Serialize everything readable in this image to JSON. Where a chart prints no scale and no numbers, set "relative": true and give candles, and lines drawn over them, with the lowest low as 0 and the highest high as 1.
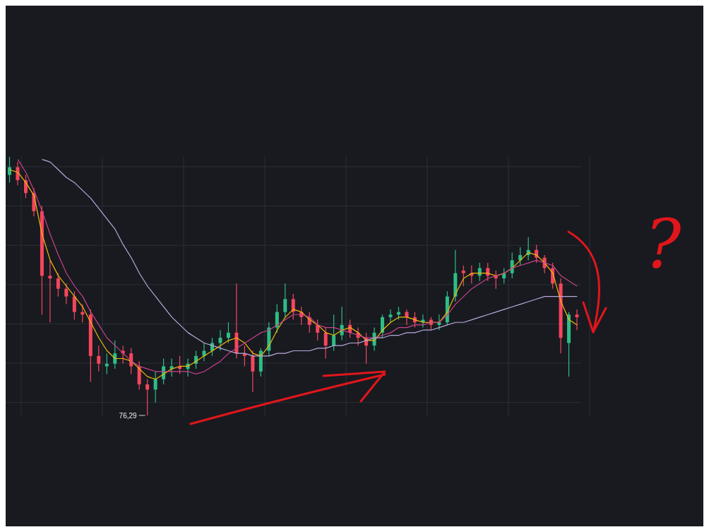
{
  "chart_data": {
    "type": "candlestick",
    "relative": true,
    "grid": true,
    "categories": [
      null,
      null,
      null,
      null,
      null,
      null,
      null,
      null,
      null,
      null,
      null,
      null,
      null,
      null,
      null,
      null,
      null,
      null,
      null,
      null,
      null,
      null,
      null,
      null,
      null,
      null,
      null,
      null,
      null,
      null,
      null,
      null,
      null,
      null,
      null,
      null,
      null,
      null,
      null,
      null,
      null,
      null,
      null,
      null,
      null,
      null,
      null,
      null,
      null,
      null,
      null,
      null,
      null,
      null,
      null,
      null,
      null,
      null,
      null,
      null,
      null,
      null,
      null,
      null,
      null,
      null,
      null,
      null,
      null,
      null,
      null
    ],
    "series": [
      {
        "ohlc": [
          [
            0.93,
            1.0,
            0.9,
            0.96
          ],
          [
            0.96,
            0.98,
            0.89,
            0.91
          ],
          [
            0.91,
            0.93,
            0.84,
            0.86
          ],
          [
            0.86,
            0.88,
            0.77,
            0.79
          ],
          [
            0.79,
            0.81,
            0.39,
            0.54
          ],
          [
            0.54,
            0.6,
            0.36,
            0.53
          ],
          [
            0.53,
            0.55,
            0.46,
            0.49
          ],
          [
            0.49,
            0.51,
            0.43,
            0.46
          ],
          [
            0.46,
            0.48,
            0.37,
            0.4
          ],
          [
            0.4,
            0.43,
            0.36,
            0.39
          ],
          [
            0.39,
            0.41,
            0.13,
            0.23
          ],
          [
            0.23,
            0.27,
            0.17,
            0.2
          ],
          [
            0.19,
            0.24,
            0.16,
            0.2
          ],
          [
            0.2,
            0.29,
            0.18,
            0.24
          ],
          [
            0.25,
            0.27,
            0.2,
            0.24
          ],
          [
            0.24,
            0.26,
            0.16,
            0.19
          ],
          [
            0.19,
            0.21,
            0.1,
            0.12
          ],
          [
            0.12,
            0.14,
            0.0,
            0.1
          ],
          [
            0.1,
            0.17,
            0.05,
            0.14
          ],
          [
            0.14,
            0.22,
            0.12,
            0.19
          ],
          [
            0.18,
            0.22,
            0.15,
            0.19
          ],
          [
            0.19,
            0.23,
            0.16,
            0.18
          ],
          [
            0.18,
            0.22,
            0.15,
            0.2
          ],
          [
            0.2,
            0.25,
            0.18,
            0.23
          ],
          [
            0.23,
            0.28,
            0.21,
            0.25
          ],
          [
            0.25,
            0.3,
            0.23,
            0.28
          ],
          [
            0.28,
            0.33,
            0.25,
            0.3
          ],
          [
            0.3,
            0.36,
            0.28,
            0.32
          ],
          [
            0.32,
            0.51,
            0.22,
            0.24
          ],
          [
            0.24,
            0.27,
            0.19,
            0.23
          ],
          [
            0.23,
            0.25,
            0.09,
            0.17
          ],
          [
            0.17,
            0.26,
            0.15,
            0.25
          ],
          [
            0.25,
            0.36,
            0.23,
            0.34
          ],
          [
            0.34,
            0.43,
            0.32,
            0.4
          ],
          [
            0.4,
            0.51,
            0.38,
            0.45
          ],
          [
            0.45,
            0.47,
            0.37,
            0.4
          ],
          [
            0.4,
            0.42,
            0.35,
            0.38
          ],
          [
            0.38,
            0.4,
            0.32,
            0.35
          ],
          [
            0.35,
            0.37,
            0.29,
            0.32
          ],
          [
            0.32,
            0.34,
            0.22,
            0.27
          ],
          [
            0.27,
            0.39,
            0.25,
            0.31
          ],
          [
            0.31,
            0.42,
            0.29,
            0.35
          ],
          [
            0.35,
            0.37,
            0.3,
            0.32
          ],
          [
            0.32,
            0.34,
            0.27,
            0.3
          ],
          [
            0.3,
            0.32,
            0.2,
            0.27
          ],
          [
            0.27,
            0.34,
            0.25,
            0.32
          ],
          [
            0.32,
            0.39,
            0.3,
            0.38
          ],
          [
            0.38,
            0.41,
            0.36,
            0.39
          ],
          [
            0.39,
            0.42,
            0.37,
            0.4
          ],
          [
            0.4,
            0.41,
            0.35,
            0.38
          ],
          [
            0.38,
            0.4,
            0.34,
            0.36
          ],
          [
            0.36,
            0.39,
            0.34,
            0.37
          ],
          [
            0.37,
            0.38,
            0.33,
            0.35
          ],
          [
            0.35,
            0.39,
            0.33,
            0.36
          ],
          [
            0.36,
            0.48,
            0.35,
            0.46
          ],
          [
            0.46,
            0.64,
            0.44,
            0.55
          ],
          [
            0.56,
            0.58,
            0.5,
            0.55
          ],
          [
            0.55,
            0.58,
            0.51,
            0.54
          ],
          [
            0.54,
            0.59,
            0.52,
            0.57
          ],
          [
            0.57,
            0.59,
            0.52,
            0.54
          ],
          [
            0.54,
            0.56,
            0.49,
            0.53
          ],
          [
            0.53,
            0.57,
            0.51,
            0.55
          ],
          [
            0.55,
            0.63,
            0.53,
            0.6
          ],
          [
            0.6,
            0.65,
            0.58,
            0.62
          ],
          [
            0.62,
            0.69,
            0.6,
            0.64
          ],
          [
            0.64,
            0.66,
            0.59,
            0.61
          ],
          [
            0.61,
            0.62,
            0.55,
            0.57
          ],
          [
            0.57,
            0.59,
            0.49,
            0.51
          ],
          [
            0.51,
            0.53,
            0.24,
            0.3
          ],
          [
            0.28,
            0.4,
            0.15,
            0.39
          ],
          [
            0.39,
            0.41,
            0.33,
            0.38
          ]
        ],
        "colors": [
          "#2ebd85",
          "#f6465d",
          "#f6465d",
          "#f6465d",
          "#f6465d",
          "#f6465d",
          "#f6465d",
          "#f6465d",
          "#f6465d",
          "#f6465d",
          "#f6465d",
          "#f6465d",
          "#2ebd85",
          "#2ebd85",
          "#f6465d",
          "#f6465d",
          "#f6465d",
          "#f6465d",
          "#2ebd85",
          "#2ebd85",
          "#2ebd85",
          "#f6465d",
          "#2ebd85",
          "#2ebd85",
          "#2ebd85",
          "#2ebd85",
          "#2ebd85",
          "#2ebd85",
          "#f6465d",
          "#f6465d",
          "#f6465d",
          "#2ebd85",
          "#2ebd85",
          "#2ebd85",
          "#2ebd85",
          "#f6465d",
          "#f6465d",
          "#f6465d",
          "#f6465d",
          "#f6465d",
          "#2ebd85",
          "#2ebd85",
          "#f6465d",
          "#f6465d",
          "#f6465d",
          "#2ebd85",
          "#2ebd85",
          "#2ebd85",
          "#2ebd85",
          "#f6465d",
          "#f6465d",
          "#2ebd85",
          "#f6465d",
          "#2ebd85",
          "#2ebd85",
          "#2ebd85",
          "#f6465d",
          "#f6465d",
          "#2ebd85",
          "#f6465d",
          "#f6465d",
          "#2ebd85",
          "#2ebd85",
          "#2ebd85",
          "#2ebd85",
          "#f6465d",
          "#f6465d",
          "#f6465d",
          "#f6465d",
          "#2ebd85",
          "#f6465d"
        ]
      },
      {
        "type": "line",
        "color": "#f0b90b",
        "values": [
          0.95,
          0.94,
          0.9,
          0.85,
          0.7,
          0.6,
          0.54,
          0.5,
          0.46,
          0.42,
          0.36,
          0.3,
          0.25,
          0.22,
          0.22,
          0.21,
          0.18,
          0.15,
          0.14,
          0.16,
          0.18,
          0.19,
          0.19,
          0.21,
          0.23,
          0.25,
          0.27,
          0.29,
          0.3,
          0.28,
          0.24,
          0.23,
          0.27,
          0.33,
          0.38,
          0.41,
          0.4,
          0.37,
          0.35,
          0.32,
          0.31,
          0.33,
          0.34,
          0.32,
          0.29,
          0.29,
          0.33,
          0.36,
          0.38,
          0.38,
          0.37,
          0.36,
          0.36,
          0.36,
          0.4,
          0.47,
          0.53,
          0.55,
          0.55,
          0.55,
          0.54,
          0.55,
          0.57,
          0.6,
          0.63,
          0.62,
          0.59,
          0.55,
          0.44,
          0.37,
          0.35
        ]
      },
      {
        "type": "line",
        "color": "#c9418a",
        "values": [
          null,
          0.99,
          0.94,
          0.87,
          0.79,
          0.7,
          0.62,
          0.55,
          0.5,
          0.46,
          0.4,
          0.35,
          0.3,
          0.27,
          0.24,
          0.21,
          0.19,
          0.18,
          0.17,
          0.17,
          0.17,
          0.17,
          0.17,
          0.16,
          0.17,
          0.19,
          0.21,
          0.24,
          0.26,
          0.28,
          0.3,
          0.32,
          0.33,
          0.35,
          0.37,
          0.39,
          0.39,
          0.38,
          0.35,
          0.34,
          0.34,
          0.33,
          0.32,
          0.31,
          0.3,
          0.3,
          0.31,
          0.32,
          0.34,
          0.34,
          0.35,
          0.35,
          0.36,
          0.36,
          0.39,
          0.43,
          0.46,
          0.49,
          0.51,
          0.53,
          0.54,
          0.55,
          0.57,
          0.58,
          0.59,
          0.6,
          0.59,
          0.58,
          0.54,
          0.52,
          0.5
        ]
      },
      {
        "type": "line",
        "color": "#b8a9d9",
        "values": [
          null,
          null,
          null,
          null,
          0.99,
          0.98,
          0.95,
          0.92,
          0.9,
          0.87,
          0.84,
          0.8,
          0.76,
          0.72,
          0.66,
          0.61,
          0.55,
          0.5,
          0.46,
          0.42,
          0.38,
          0.35,
          0.32,
          0.3,
          0.28,
          0.27,
          0.26,
          0.25,
          0.24,
          0.24,
          0.23,
          0.23,
          0.23,
          0.24,
          0.24,
          0.25,
          0.25,
          0.25,
          0.26,
          0.26,
          0.27,
          0.27,
          0.28,
          0.28,
          0.29,
          0.3,
          0.3,
          0.31,
          0.31,
          0.32,
          0.32,
          0.33,
          0.33,
          0.34,
          0.35,
          0.36,
          0.36,
          0.37,
          0.38,
          0.39,
          0.4,
          0.41,
          0.42,
          0.43,
          0.44,
          0.45,
          0.46,
          0.46,
          0.46,
          0.46,
          0.46
        ]
      }
    ],
    "annotations": [
      "76,29",
      "?"
    ]
  }
}
